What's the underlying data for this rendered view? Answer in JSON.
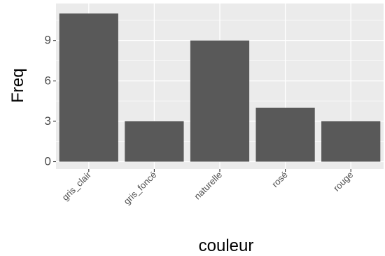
{
  "chart_data": {
    "type": "bar",
    "categories": [
      "gris_clair",
      "gris_foncé",
      "naturelle",
      "rosé",
      "rouge"
    ],
    "values": [
      11,
      3,
      9,
      4,
      3
    ],
    "xlabel": "couleur",
    "ylabel": "Freq",
    "ylim": [
      0,
      11
    ],
    "yticks": [
      0,
      3,
      6,
      9
    ],
    "grid": true,
    "colors": {
      "panel": "#ebebeb",
      "grid": "#ffffff",
      "bar": "#595959",
      "tick_text": "#4d4d4d",
      "title_text": "#000000",
      "tick_mark": "#333333"
    }
  }
}
